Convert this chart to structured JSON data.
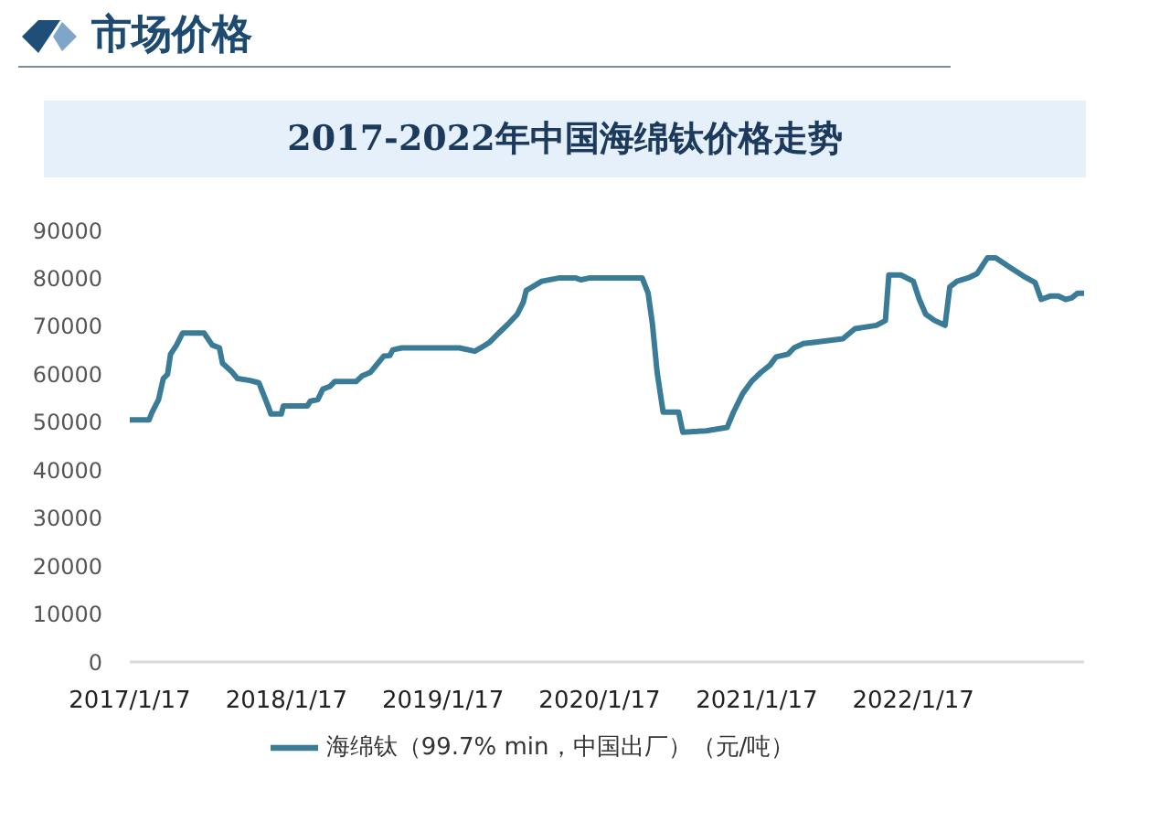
{
  "chart_data": {
    "type": "line",
    "title": "2017-2022年中国海绵钛价格走势",
    "annotations": [
      "市场价格"
    ],
    "x": [
      "2017-01-17",
      "2017-03-03",
      "2017-03-10",
      "2017-03-25",
      "2017-04-05",
      "2017-04-15",
      "2017-04-22",
      "2017-05-06",
      "2017-05-20",
      "2017-07-09",
      "2017-07-28",
      "2017-08-14",
      "2017-08-21",
      "2017-09-11",
      "2017-09-25",
      "2017-10-24",
      "2017-11-14",
      "2017-11-21",
      "2017-12-05",
      "2017-12-12",
      "2018-01-05",
      "2018-01-10",
      "2018-03-07",
      "2018-03-14",
      "2018-03-31",
      "2018-04-12",
      "2018-04-29",
      "2018-05-10",
      "2018-06-29",
      "2018-07-13",
      "2018-08-01",
      "2018-08-18",
      "2018-09-01",
      "2018-09-15",
      "2018-09-22",
      "2018-10-13",
      "2019-02-24",
      "2019-04-01",
      "2019-04-15",
      "2019-05-06",
      "2019-05-27",
      "2019-06-18",
      "2019-07-09",
      "2019-07-23",
      "2019-07-30",
      "2019-08-13",
      "2019-09-04",
      "2019-10-16",
      "2019-11-21",
      "2019-12-05",
      "2019-12-26",
      "2020-04-25",
      "2020-05-09",
      "2020-05-19",
      "2020-05-30",
      "2020-06-13",
      "2020-07-19",
      "2020-07-29",
      "2020-09-21",
      "2020-11-09",
      "2020-11-24",
      "2020-12-15",
      "2021-01-05",
      "2021-01-27",
      "2021-02-17",
      "2021-03-03",
      "2021-03-31",
      "2021-04-14",
      "2021-05-06",
      "2021-06-03",
      "2021-08-06",
      "2021-09-03",
      "2021-10-23",
      "2021-11-13",
      "2021-11-21",
      "2021-12-19",
      "2022-01-17",
      "2022-01-31",
      "2022-02-15",
      "2022-03-08",
      "2022-04-01",
      "2022-04-12",
      "2022-04-29",
      "2022-05-25",
      "2022-06-15",
      "2022-07-09",
      "2022-07-28",
      "2022-09-01",
      "2022-09-30",
      "2022-10-28",
      "2022-11-11",
      "2022-12-02",
      "2022-12-21",
      "2023-01-07",
      "2023-01-21",
      "2023-02-04",
      "2023-02-19"
    ],
    "series": [
      {
        "name": "海绵钛（99.7% min，中国出厂）（元/吨）",
        "color": "#3a7c98",
        "values": [
          50500,
          50500,
          52100,
          54700,
          59100,
          60000,
          64200,
          66100,
          68600,
          68600,
          66100,
          65500,
          62300,
          60600,
          59100,
          58700,
          58200,
          56600,
          53400,
          51700,
          51700,
          53400,
          53400,
          54400,
          54700,
          56900,
          57500,
          58500,
          58500,
          59700,
          60400,
          62300,
          63800,
          63900,
          65100,
          65500,
          65500,
          64800,
          65500,
          66700,
          68600,
          70500,
          72500,
          75000,
          77500,
          78200,
          79400,
          80100,
          80100,
          79700,
          80100,
          80100,
          76900,
          70500,
          60400,
          52100,
          52100,
          47900,
          48200,
          48900,
          52100,
          55900,
          58500,
          60400,
          61900,
          63600,
          64200,
          65500,
          66400,
          66700,
          67400,
          69500,
          70200,
          71200,
          80700,
          80700,
          79400,
          75600,
          72500,
          71200,
          70200,
          78200,
          79400,
          80100,
          81000,
          84300,
          84300,
          82200,
          80500,
          79100,
          75600,
          76300,
          76300,
          75600,
          75900,
          76900,
          76900
        ]
      }
    ],
    "xlim": [
      "2017-01-17",
      "2023-02-19"
    ],
    "xticks": [
      {
        "value": "2017-01-17",
        "label": "2017/1/17"
      },
      {
        "value": "2018-01-17",
        "label": "2018/1/17"
      },
      {
        "value": "2019-01-17",
        "label": "2019/1/17"
      },
      {
        "value": "2020-01-17",
        "label": "2020/1/17"
      },
      {
        "value": "2021-01-17",
        "label": "2021/1/17"
      },
      {
        "value": "2022-01-17",
        "label": "2022/1/17"
      }
    ],
    "ylim": [
      0,
      90000
    ],
    "yticks": [
      0,
      10000,
      20000,
      30000,
      40000,
      50000,
      60000,
      70000,
      80000,
      90000
    ],
    "legend": "bottom"
  }
}
